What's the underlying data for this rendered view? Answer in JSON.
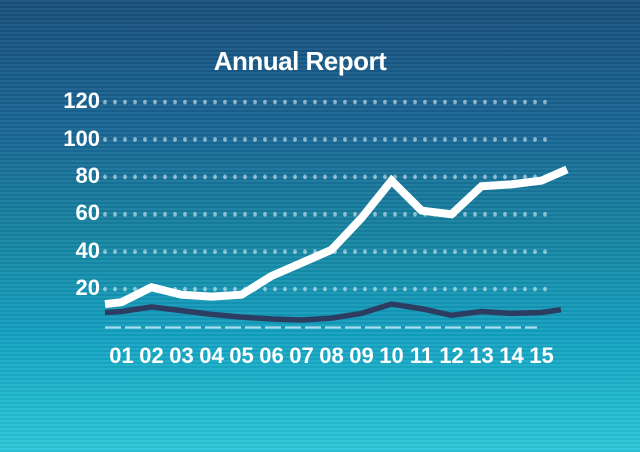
{
  "title": "Annual Report",
  "colors": {
    "background_top": "#164e79",
    "background_bottom": "#2bc7d9",
    "text": "#ffffff",
    "primary_line": "#ffffff",
    "secondary_line": "#2d3d62",
    "grid_dots": "rgba(235,247,253,0.55)",
    "baseline": "rgba(205,237,249,0.8)"
  },
  "chart_data": {
    "type": "line",
    "title": "Annual Report",
    "categories": [
      "01",
      "02",
      "03",
      "04",
      "05",
      "06",
      "07",
      "08",
      "09",
      "10",
      "11",
      "12",
      "13",
      "14",
      "15"
    ],
    "y_ticks_top_to_bottom": [
      120,
      100,
      80,
      60,
      40,
      20
    ],
    "ylim": [
      0,
      130
    ],
    "xlabel": "",
    "ylabel": "",
    "grid": "dotted horizontal lines at each y tick",
    "baseline_style": "light dashed line at y=0",
    "legend": "none",
    "series": [
      {
        "name": "primary-white",
        "color": "#ffffff",
        "values": [
          13,
          21,
          17,
          16,
          17,
          27,
          34,
          41,
          58,
          78,
          62,
          60,
          75,
          76,
          78
        ],
        "lead_value": 12,
        "trail_value": 84
      },
      {
        "name": "secondary-navy",
        "color": "#2d3d62",
        "values": [
          8,
          10.5,
          8.5,
          6.5,
          5,
          4,
          3.5,
          4.5,
          7,
          12,
          9.5,
          6,
          8,
          7,
          7.5
        ],
        "lead_value": 7.5,
        "trail_value": 9
      }
    ]
  }
}
